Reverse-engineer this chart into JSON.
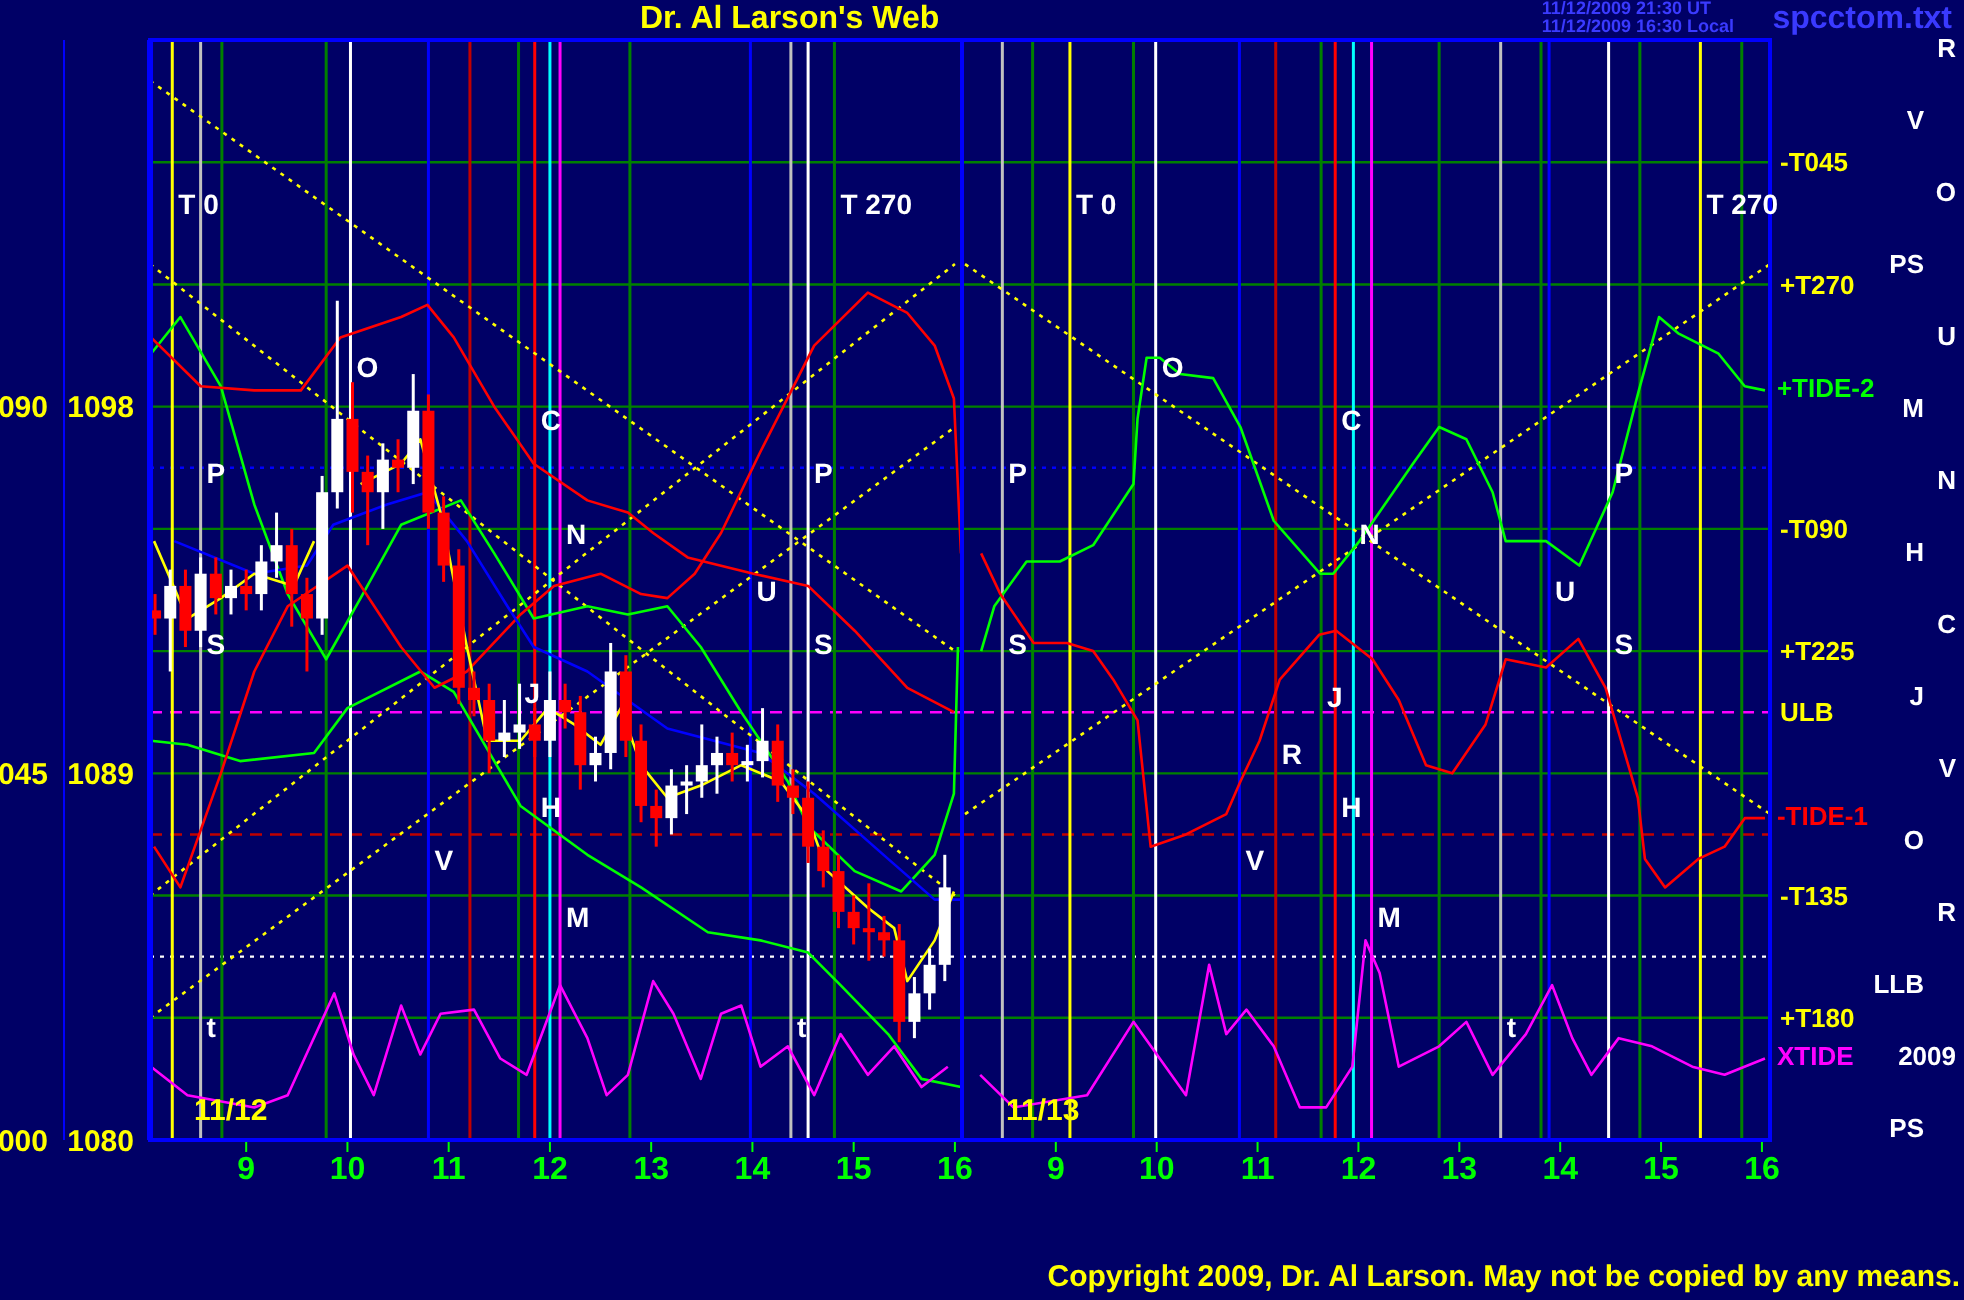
{
  "chart_data": [
    {
      "type": "candlestick",
      "title": "Dr. Al Larson's Web",
      "x": [
        8.1,
        8.25,
        8.4,
        8.55,
        8.7,
        8.85,
        9.0,
        9.15,
        9.3,
        9.45,
        9.6,
        9.75,
        9.9,
        10.05,
        10.2,
        10.35,
        10.5,
        10.65,
        10.8,
        10.95,
        11.1,
        11.25,
        11.4,
        11.55,
        11.7,
        11.85,
        12.0,
        12.15,
        12.3,
        12.45,
        12.6,
        12.75,
        12.9,
        13.05,
        13.2,
        13.35,
        13.5,
        13.65,
        13.8,
        13.95,
        14.1,
        14.25,
        14.4,
        14.55,
        14.7,
        14.85,
        15.0,
        15.15,
        15.3,
        15.45,
        15.6,
        15.75,
        15.9
      ],
      "ohlc": [
        [
          1093.0,
          1093.4,
          1092.4,
          1092.8
        ],
        [
          1092.8,
          1094.0,
          1091.5,
          1093.6
        ],
        [
          1093.6,
          1094.0,
          1092.1,
          1092.5
        ],
        [
          1092.5,
          1094.3,
          1092.1,
          1093.9
        ],
        [
          1093.9,
          1094.3,
          1092.9,
          1093.3
        ],
        [
          1093.3,
          1094.0,
          1092.9,
          1093.6
        ],
        [
          1093.6,
          1094.0,
          1093.0,
          1093.4
        ],
        [
          1093.4,
          1094.6,
          1093.0,
          1094.2
        ],
        [
          1094.2,
          1095.4,
          1093.8,
          1094.6
        ],
        [
          1094.6,
          1095.0,
          1092.6,
          1093.4
        ],
        [
          1093.4,
          1093.8,
          1091.5,
          1092.8
        ],
        [
          1092.8,
          1096.3,
          1092.4,
          1095.9
        ],
        [
          1095.9,
          1100.6,
          1095.5,
          1097.7
        ],
        [
          1097.7,
          1098.6,
          1095.4,
          1096.4
        ],
        [
          1096.4,
          1096.8,
          1094.6,
          1095.9
        ],
        [
          1095.9,
          1097.1,
          1095.0,
          1096.7
        ],
        [
          1096.7,
          1097.2,
          1095.9,
          1096.5
        ],
        [
          1096.5,
          1098.8,
          1096.1,
          1097.9
        ],
        [
          1097.9,
          1098.3,
          1095.0,
          1095.4
        ],
        [
          1095.4,
          1095.8,
          1093.7,
          1094.1
        ],
        [
          1094.1,
          1094.5,
          1090.7,
          1091.1
        ],
        [
          1091.1,
          1091.5,
          1090.4,
          1090.8
        ],
        [
          1090.8,
          1091.2,
          1089.0,
          1089.8
        ],
        [
          1089.8,
          1090.8,
          1089.4,
          1090.0
        ],
        [
          1090.0,
          1091.2,
          1089.6,
          1090.2
        ],
        [
          1090.2,
          1090.6,
          1089.4,
          1089.8
        ],
        [
          1089.8,
          1091.5,
          1089.4,
          1090.8
        ],
        [
          1090.8,
          1091.2,
          1090.1,
          1090.5
        ],
        [
          1090.5,
          1090.9,
          1088.6,
          1089.2
        ],
        [
          1089.2,
          1089.9,
          1088.8,
          1089.5
        ],
        [
          1089.5,
          1092.2,
          1089.1,
          1091.5
        ],
        [
          1091.5,
          1091.9,
          1089.4,
          1089.8
        ],
        [
          1089.8,
          1090.2,
          1087.8,
          1088.2
        ],
        [
          1088.2,
          1088.6,
          1087.2,
          1087.9
        ],
        [
          1087.9,
          1089.1,
          1087.5,
          1088.7
        ],
        [
          1088.7,
          1089.2,
          1088.0,
          1088.8
        ],
        [
          1088.8,
          1090.2,
          1088.4,
          1089.2
        ],
        [
          1089.2,
          1089.9,
          1088.5,
          1089.5
        ],
        [
          1089.5,
          1090.0,
          1088.8,
          1089.2
        ],
        [
          1089.2,
          1089.7,
          1088.8,
          1089.3
        ],
        [
          1089.3,
          1090.6,
          1088.9,
          1089.8
        ],
        [
          1089.8,
          1090.2,
          1088.3,
          1088.7
        ],
        [
          1088.7,
          1089.1,
          1088.0,
          1088.4
        ],
        [
          1088.4,
          1088.8,
          1086.8,
          1087.2
        ],
        [
          1087.2,
          1087.6,
          1086.2,
          1086.6
        ],
        [
          1086.6,
          1087.0,
          1085.2,
          1085.6
        ],
        [
          1085.6,
          1086.0,
          1084.8,
          1085.2
        ],
        [
          1085.2,
          1086.3,
          1084.4,
          1085.1
        ],
        [
          1085.1,
          1085.5,
          1084.5,
          1084.9
        ],
        [
          1084.9,
          1085.3,
          1082.4,
          1082.9
        ],
        [
          1082.9,
          1084.0,
          1082.5,
          1083.6
        ],
        [
          1083.6,
          1084.7,
          1083.2,
          1084.3
        ],
        [
          1084.3,
          1087.0,
          1083.9,
          1086.2
        ]
      ],
      "series": [
        {
          "type": "line",
          "color": "#ffff00",
          "line_style": "dotted",
          "x": [
            8.05,
            16.0
          ],
          "values": [
            1101.5,
            1086.0
          ]
        },
        {
          "type": "line",
          "color": "#ffff00",
          "line_style": "dotted",
          "x": [
            8.05,
            16.0
          ],
          "values": [
            1086.0,
            1101.5
          ]
        },
        {
          "type": "line",
          "color": "#ffff00",
          "line_style": "dotted",
          "x": [
            8.05,
            16.0
          ],
          "values": [
            1106.0,
            1092.0
          ]
        },
        {
          "type": "line",
          "color": "#ffff00",
          "line_style": "dotted",
          "x": [
            8.05,
            16.0
          ],
          "values": [
            1083.0,
            1097.5
          ]
        },
        {
          "type": "line",
          "color": "#00ff00",
          "x": [
            8.06,
            8.35,
            8.75,
            9.08,
            9.41,
            9.79,
            10.13,
            10.53,
            11.12,
            11.45,
            11.84,
            12.37,
            12.77,
            13.16,
            13.49,
            13.89,
            14.35,
            14.55,
            15.01,
            15.47,
            15.8,
            15.99,
            16.03
          ],
          "values": [
            1099.3,
            1100.2,
            1098.5,
            1095.6,
            1093.4,
            1091.8,
            1093.3,
            1095.1,
            1095.7,
            1094.4,
            1092.8,
            1093.1,
            1092.9,
            1093.1,
            1092.1,
            1090.5,
            1088.8,
            1087.7,
            1086.6,
            1086.1,
            1087.0,
            1088.5,
            1092.1
          ]
        },
        {
          "type": "line",
          "color": "#00ff00",
          "x": [
            8.06,
            8.42,
            8.94,
            9.67,
            10.0,
            10.72,
            11.05,
            11.71,
            12.37,
            12.9,
            13.56,
            14.08,
            14.55,
            14.87,
            15.34,
            15.67,
            16.06
          ],
          "values": [
            1089.8,
            1089.7,
            1089.3,
            1089.5,
            1090.6,
            1091.5,
            1091.0,
            1088.2,
            1087.0,
            1086.2,
            1085.1,
            1084.9,
            1084.6,
            1083.8,
            1082.6,
            1081.5,
            1081.3
          ]
        },
        {
          "type": "line",
          "color": "#ff0000",
          "x": [
            8.09,
            8.35,
            8.75,
            9.08,
            9.41,
            10.0,
            10.53,
            10.86,
            11.18,
            11.71,
            12.04,
            12.5,
            12.9,
            13.16,
            13.43,
            13.69,
            14.08,
            14.61,
            15.14,
            15.53,
            15.8,
            15.99,
            16.06
          ],
          "values": [
            1087.2,
            1086.2,
            1089.0,
            1091.5,
            1093.1,
            1094.1,
            1092.1,
            1091.1,
            1091.5,
            1092.9,
            1093.6,
            1093.9,
            1093.4,
            1093.3,
            1093.9,
            1094.9,
            1096.9,
            1099.5,
            1100.8,
            1100.3,
            1099.5,
            1098.2,
            1094.4
          ]
        },
        {
          "type": "line",
          "color": "#ff0000",
          "x": [
            8.06,
            8.55,
            9.08,
            9.54,
            9.93,
            10.53,
            10.79,
            11.05,
            11.45,
            11.84,
            12.37,
            12.77,
            13.02,
            13.36,
            14.01,
            14.55,
            15.01,
            15.53,
            15.99
          ],
          "values": [
            1099.7,
            1098.5,
            1098.4,
            1098.4,
            1099.7,
            1100.2,
            1100.5,
            1099.7,
            1098.0,
            1096.6,
            1095.7,
            1095.4,
            1094.9,
            1094.3,
            1093.9,
            1093.6,
            1092.5,
            1091.1,
            1090.5
          ]
        },
        {
          "type": "line",
          "color": "#0000ff",
          "x": [
            8.29,
            9.08,
            9.6,
            9.86,
            10.39,
            10.79,
            11.18,
            11.58,
            11.84,
            12.37,
            13.16,
            14.08,
            14.61,
            15.34,
            15.8,
            16.06
          ],
          "values": [
            1094.7,
            1093.9,
            1094.1,
            1095.1,
            1095.6,
            1095.9,
            1094.7,
            1093.1,
            1092.1,
            1091.5,
            1090.1,
            1089.5,
            1088.5,
            1086.9,
            1085.9,
            1085.9
          ]
        },
        {
          "type": "line",
          "color": "#ffff00",
          "x": [
            8.09,
            8.42,
            8.75,
            9.08,
            9.47,
            9.67,
            9.87,
            10.13,
            10.53,
            10.72,
            10.92,
            11.18,
            11.38,
            11.71,
            11.98,
            12.24,
            12.5,
            12.7,
            12.9,
            13.16,
            13.49,
            13.89,
            14.28,
            14.55,
            14.74,
            15.14,
            15.4,
            15.53,
            15.8,
            15.99
          ],
          "values": [
            1094.7,
            1092.8,
            1093.3,
            1093.9,
            1093.6,
            1094.7,
            null,
            1096.1,
            1096.6,
            1097.2,
            1095.4,
            1092.1,
            1089.8,
            1089.8,
            1090.6,
            1090.2,
            1089.7,
            1090.6,
            1089.2,
            1088.4,
            1088.7,
            1089.2,
            1088.8,
            1087.9,
            1086.6,
            1085.7,
            1085.2,
            1083.9,
            1084.9,
            1086.1
          ]
        },
        {
          "type": "line",
          "color": "#ff00ff",
          "x": [
            8.06,
            8.42,
            9.08,
            9.41,
            9.87,
            10.06,
            10.26,
            10.53,
            10.72,
            10.92,
            11.25,
            11.51,
            11.77,
            12.1,
            12.37,
            12.56,
            12.77,
            13.02,
            13.22,
            13.49,
            13.69,
            13.89,
            14.08,
            14.35,
            14.61,
            14.87,
            15.14,
            15.4,
            15.67,
            15.93
          ],
          "values": [
            1081.8,
            1081.1,
            1080.8,
            1081.1,
            1083.6,
            1082.1,
            1081.1,
            1083.3,
            1082.1,
            1083.1,
            1083.2,
            1082.0,
            1081.6,
            1083.8,
            1082.5,
            1081.1,
            1081.6,
            1083.9,
            1083.1,
            1081.5,
            1083.1,
            1083.3,
            1081.8,
            1082.3,
            1081.1,
            1082.6,
            1081.6,
            1082.3,
            1081.3,
            1081.8
          ]
        }
      ],
      "xlim": [
        8.05,
        16.07
      ],
      "xticks": [
        9,
        10,
        11,
        12,
        13,
        14,
        15,
        16
      ],
      "ylim": [
        1080,
        1107
      ],
      "yticks": [
        1080,
        1089,
        1098
      ],
      "y2lim": [
        0,
        135
      ],
      "y2ticks": [
        {
          "value": 0,
          "label": "000"
        },
        {
          "value": 45,
          "label": "045"
        },
        {
          "value": 90,
          "label": "090"
        }
      ],
      "marker": "none",
      "ref_lines": [
        {
          "axis": "y",
          "value": 1104,
          "label": null,
          "color": "#008000"
        },
        {
          "axis": "y",
          "value": 1101,
          "label": null,
          "color": "#008000"
        },
        {
          "axis": "y",
          "value": 1098,
          "label": null,
          "color": "#008000"
        },
        {
          "axis": "y",
          "value": 1095,
          "label": null,
          "color": "#008000"
        },
        {
          "axis": "y",
          "value": 1092,
          "label": null,
          "color": "#008000"
        },
        {
          "axis": "y",
          "value": 1089,
          "label": null,
          "color": "#008000"
        },
        {
          "axis": "y",
          "value": 1086,
          "label": null,
          "color": "#008000"
        },
        {
          "axis": "y",
          "value": 1083,
          "label": null,
          "color": "#008000"
        },
        {
          "axis": "y",
          "value": 1090.5,
          "label": null,
          "color": "#ff00ff",
          "line_style": "dashed"
        },
        {
          "axis": "y",
          "value": 1087.5,
          "label": null,
          "color": "#c00000",
          "line_style": "dashed"
        },
        {
          "axis": "y",
          "value": 1096.5,
          "label": null,
          "color": "#0000ff",
          "line_style": "dotted"
        },
        {
          "axis": "y",
          "value": 1084.5,
          "label": null,
          "color": "#ffffff",
          "line_style": "dotted"
        },
        {
          "axis": "x",
          "value": 8.27,
          "label": null,
          "color": "#ffff00"
        },
        {
          "axis": "x",
          "value": 8.55,
          "label": null,
          "color": "#c0c0c0"
        },
        {
          "axis": "x",
          "value": 8.76,
          "label": null,
          "color": "#008000"
        },
        {
          "axis": "x",
          "value": 9.79,
          "label": null,
          "color": "#008000"
        },
        {
          "axis": "x",
          "value": 10.03,
          "label": null,
          "color": "#ffffff"
        },
        {
          "axis": "x",
          "value": 10.8,
          "label": null,
          "color": "#0000ff"
        },
        {
          "axis": "x",
          "value": 11.21,
          "label": null,
          "color": "#c00000"
        },
        {
          "axis": "x",
          "value": 11.69,
          "label": null,
          "color": "#008000"
        },
        {
          "axis": "x",
          "value": 11.85,
          "label": null,
          "color": "#ff0000"
        },
        {
          "axis": "x",
          "value": 12.0,
          "label": null,
          "color": "#00ffff"
        },
        {
          "axis": "x",
          "value": 12.1,
          "label": null,
          "color": "#ff00ff"
        },
        {
          "axis": "x",
          "value": 12.79,
          "label": null,
          "color": "#008000"
        },
        {
          "axis": "x",
          "value": 13.98,
          "label": null,
          "color": "#0000ff"
        },
        {
          "axis": "x",
          "value": 14.38,
          "label": null,
          "color": "#c0c0c0"
        },
        {
          "axis": "x",
          "value": 14.55,
          "label": null,
          "color": "#ffffff"
        },
        {
          "axis": "x",
          "value": 14.81,
          "label": null,
          "color": "#008000"
        }
      ],
      "annotations": [
        "11/12",
        {
          "text": "T  0",
          "x": 8.27,
          "y": 1102.9
        },
        {
          "text": "T  270",
          "x": 14.81,
          "y": 1102.9
        },
        {
          "text": "O",
          "x": 10.03,
          "y": 1098.9
        },
        {
          "text": "C",
          "x": 11.85,
          "y": 1097.6
        },
        {
          "text": "P",
          "x": 8.55,
          "y": 1096.3
        },
        {
          "text": "P",
          "x": 14.55,
          "y": 1096.3
        },
        {
          "text": "N",
          "x": 12.1,
          "y": 1094.8
        },
        {
          "text": "U",
          "x": 13.98,
          "y": 1093.4
        },
        {
          "text": "S",
          "x": 8.55,
          "y": 1092.1
        },
        {
          "text": "S",
          "x": 14.55,
          "y": 1092.1
        },
        {
          "text": "J",
          "x": 11.69,
          "y": 1090.9
        },
        {
          "text": "H",
          "x": 11.85,
          "y": 1088.1
        },
        {
          "text": "V",
          "x": 10.8,
          "y": 1086.8
        },
        {
          "text": "M",
          "x": 12.1,
          "y": 1085.4
        },
        {
          "text": "t",
          "x": 8.55,
          "y": 1082.7
        },
        {
          "text": "t",
          "x": 14.38,
          "y": 1082.7
        }
      ]
    },
    {
      "type": "line",
      "series": [
        {
          "type": "line",
          "color": "#ffff00",
          "line_style": "dotted",
          "x": [
            8.1,
            16.08
          ],
          "values": [
            1101.5,
            1088.0
          ]
        },
        {
          "type": "line",
          "color": "#ffff00",
          "line_style": "dotted",
          "x": [
            8.1,
            16.08
          ],
          "values": [
            1088.0,
            1101.5
          ]
        },
        {
          "type": "line",
          "name": "+TIDE-2",
          "color": "#00ff00",
          "x": [
            8.26,
            8.39,
            8.71,
            9.04,
            9.37,
            9.77,
            9.81,
            9.9,
            10.03,
            10.23,
            10.56,
            10.83,
            11.16,
            11.62,
            11.75,
            12.01,
            12.54,
            12.8,
            13.07,
            13.33,
            13.46,
            13.86,
            14.19,
            14.52,
            14.78,
            14.98,
            15.17,
            15.57,
            15.83,
            16.03
          ],
          "values": [
            1092.0,
            1093.1,
            1094.2,
            1094.2,
            1094.6,
            1096.1,
            1097.7,
            1099.2,
            1099.2,
            1098.8,
            1098.7,
            1097.5,
            1095.2,
            1093.9,
            1093.9,
            1094.7,
            1096.6,
            1097.5,
            1097.2,
            1095.9,
            1094.7,
            1094.7,
            1094.1,
            1095.9,
            1098.4,
            1100.2,
            1099.8,
            1099.3,
            1098.5,
            1098.4
          ]
        },
        {
          "type": "line",
          "name": "-TIDE-1",
          "color": "#ff0000",
          "x": [
            8.26,
            8.45,
            8.78,
            9.11,
            9.37,
            9.57,
            9.81,
            9.94,
            10.29,
            10.69,
            10.83,
            11.02,
            11.22,
            11.61,
            11.78,
            12.14,
            12.4,
            12.67,
            12.93,
            13.26,
            13.46,
            13.86,
            14.18,
            14.45,
            14.77,
            14.84,
            15.04,
            15.37,
            15.63,
            15.83,
            16.03
          ],
          "values": [
            1094.4,
            1093.4,
            1092.2,
            1092.2,
            1092.0,
            1091.3,
            1090.3,
            1087.2,
            1087.5,
            1088.0,
            1088.8,
            1089.8,
            1091.3,
            1092.4,
            1092.5,
            1091.8,
            1090.8,
            1089.2,
            1089.0,
            1090.2,
            1091.8,
            1091.6,
            1092.3,
            1091.1,
            1088.4,
            1086.9,
            1086.2,
            1086.9,
            1087.2,
            1087.9,
            1087.9
          ]
        },
        {
          "type": "line",
          "name": "XTIDE",
          "color": "#ff00ff",
          "x": [
            8.25,
            8.58,
            9.31,
            9.77,
            10.03,
            10.29,
            10.52,
            10.69,
            10.89,
            11.16,
            11.42,
            11.68,
            11.94,
            12.07,
            12.21,
            12.4,
            12.8,
            13.07,
            13.33,
            13.66,
            13.92,
            14.12,
            14.31,
            14.58,
            14.91,
            15.31,
            15.63,
            16.03
          ],
          "values": [
            1081.6,
            1080.8,
            1081.1,
            1082.9,
            1082.0,
            1081.1,
            1084.3,
            1082.6,
            1083.2,
            1082.3,
            1080.8,
            1080.8,
            1081.8,
            1084.9,
            1084.1,
            1081.8,
            1082.3,
            1082.9,
            1081.6,
            1082.6,
            1083.8,
            1082.5,
            1081.6,
            1082.5,
            1082.3,
            1081.8,
            1081.6,
            1082.0
          ]
        }
      ],
      "xlim": [
        8.07,
        16.08
      ],
      "xticks": [
        9,
        10,
        11,
        12,
        13,
        14,
        15,
        16
      ],
      "ylim": [
        1080,
        1107
      ],
      "tick_labels": "x",
      "marker": "none",
      "ref_lines": [
        {
          "axis": "y",
          "value": 1104,
          "label": "-T045",
          "color": "#008000"
        },
        {
          "axis": "y",
          "value": 1101,
          "label": "+T270",
          "color": "#008000"
        },
        {
          "axis": "y",
          "value": 1098,
          "label": null,
          "color": "#008000"
        },
        {
          "axis": "y",
          "value": 1095,
          "label": "-T090",
          "color": "#008000"
        },
        {
          "axis": "y",
          "value": 1092,
          "label": "+T225",
          "color": "#008000"
        },
        {
          "axis": "y",
          "value": 1089,
          "label": null,
          "color": "#008000"
        },
        {
          "axis": "y",
          "value": 1086,
          "label": "-T135",
          "color": "#008000"
        },
        {
          "axis": "y",
          "value": 1083,
          "label": "+T180",
          "color": "#008000"
        },
        {
          "axis": "y",
          "value": 1090.5,
          "label": "ULB",
          "color": "#ff00ff",
          "line_style": "dashed"
        },
        {
          "axis": "y",
          "value": 1087.5,
          "label": null,
          "color": "#c00000",
          "line_style": "dashed"
        },
        {
          "axis": "y",
          "value": 1096.5,
          "label": null,
          "color": "#0000ff",
          "line_style": "dotted"
        },
        {
          "axis": "y",
          "value": 1084.5,
          "label": null,
          "color": "#ffffff",
          "line_style": "dotted"
        },
        {
          "axis": "x",
          "value": 8.47,
          "label": null,
          "color": "#c0c0c0"
        },
        {
          "axis": "x",
          "value": 8.77,
          "label": null,
          "color": "#008000"
        },
        {
          "axis": "x",
          "value": 9.14,
          "label": null,
          "color": "#ffff00"
        },
        {
          "axis": "x",
          "value": 9.77,
          "label": null,
          "color": "#008000"
        },
        {
          "axis": "x",
          "value": 9.99,
          "label": null,
          "color": "#ffffff"
        },
        {
          "axis": "x",
          "value": 10.82,
          "label": null,
          "color": "#0000ff"
        },
        {
          "axis": "x",
          "value": 11.18,
          "label": null,
          "color": "#c00000"
        },
        {
          "axis": "x",
          "value": 11.63,
          "label": null,
          "color": "#008000"
        },
        {
          "axis": "x",
          "value": 11.77,
          "label": null,
          "color": "#ff0000"
        },
        {
          "axis": "x",
          "value": 11.95,
          "label": null,
          "color": "#00ffff"
        },
        {
          "axis": "x",
          "value": 12.13,
          "label": null,
          "color": "#ff00ff"
        },
        {
          "axis": "x",
          "value": 12.8,
          "label": null,
          "color": "#008000"
        },
        {
          "axis": "x",
          "value": 13.41,
          "label": null,
          "color": "#c0c0c0"
        },
        {
          "axis": "x",
          "value": 13.81,
          "label": null,
          "color": "#008000"
        },
        {
          "axis": "x",
          "value": 13.89,
          "label": null,
          "color": "#0000ff"
        },
        {
          "axis": "x",
          "value": 14.48,
          "label": null,
          "color": "#ffffff"
        },
        {
          "axis": "x",
          "value": 14.79,
          "label": null,
          "color": "#008000"
        },
        {
          "axis": "x",
          "value": 15.39,
          "label": null,
          "color": "#ffff00"
        },
        {
          "axis": "x",
          "value": 15.8,
          "label": null,
          "color": "#008000"
        }
      ],
      "annotations": [
        "11/13",
        "11/12/2009 21:30 UT",
        "11/12/2009 16:30 Local",
        "spcctom.txt",
        "R",
        "V",
        "O",
        "PS",
        "U",
        "M",
        "N",
        "H",
        "C",
        "J",
        "V",
        "O",
        "R",
        "LLB",
        "2009",
        "PS",
        "Copyright 2009, Dr. Al Larson. May not be copied by any means.",
        {
          "text": "T  0",
          "x": 9.14,
          "y": 1102.9
        },
        {
          "text": "T  270",
          "x": 15.39,
          "y": 1102.9
        },
        {
          "text": "O",
          "x": 9.99,
          "y": 1098.9
        },
        {
          "text": "C",
          "x": 11.77,
          "y": 1097.6
        },
        {
          "text": "P",
          "x": 8.47,
          "y": 1096.3
        },
        {
          "text": "P",
          "x": 14.48,
          "y": 1096.3
        },
        {
          "text": "N",
          "x": 11.95,
          "y": 1094.8
        },
        {
          "text": "U",
          "x": 13.89,
          "y": 1093.4
        },
        {
          "text": "S",
          "x": 8.47,
          "y": 1092.1
        },
        {
          "text": "S",
          "x": 14.48,
          "y": 1092.1
        },
        {
          "text": "J",
          "x": 11.63,
          "y": 1090.8
        },
        {
          "text": "R",
          "x": 11.18,
          "y": 1089.4
        },
        {
          "text": "H",
          "x": 11.77,
          "y": 1088.1
        },
        {
          "text": "V",
          "x": 10.82,
          "y": 1086.8
        },
        {
          "text": "M",
          "x": 12.13,
          "y": 1085.4
        },
        {
          "text": "t",
          "x": 13.41,
          "y": 1082.7
        }
      ]
    }
  ]
}
